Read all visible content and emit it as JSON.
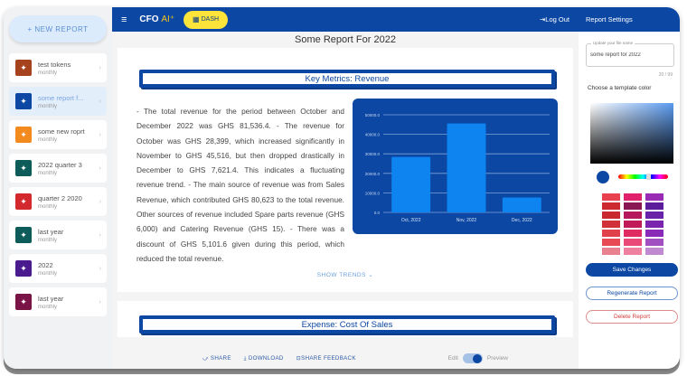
{
  "sidebar": {
    "new_report_label": "+ NEW REPORT",
    "items": [
      {
        "name": "test tokens",
        "sub": "monthly",
        "color": "#a6421e",
        "active": false
      },
      {
        "name": "some report f...",
        "sub": "monthly",
        "color": "#0b47a3",
        "active": true
      },
      {
        "name": "some new roprt",
        "sub": "monthly",
        "color": "#f28a1e",
        "active": false
      },
      {
        "name": "2022 quarter 3",
        "sub": "monthly",
        "color": "#0e5c5a",
        "active": false
      },
      {
        "name": "quarter 2 2020",
        "sub": "monthly",
        "color": "#d2282e",
        "active": false
      },
      {
        "name": "last year",
        "sub": "monthly",
        "color": "#0e5c5a",
        "active": false
      },
      {
        "name": "2022",
        "sub": "monthly",
        "color": "#4a1a8f",
        "active": false
      },
      {
        "name": "last year",
        "sub": "monthly",
        "color": "#7a1446",
        "active": false
      }
    ],
    "chevron": "›",
    "item_icon": "sparkle-icon"
  },
  "topbar": {
    "menu_icon": "≡",
    "logo_text": "CFO ",
    "logo_ai": "AI⁺",
    "dash_icon": "▦",
    "dash_label": "DASH",
    "logout_label": "⇥Log Out",
    "bg_color": "#0b47a3"
  },
  "main": {
    "report_title": "Some Report For 2022",
    "sections": [
      {
        "header": "Key Metrics: Revenue",
        "body": "- The total revenue for the period between October and December 2022 was GHS 81,536.4. - The revenue for October was GHS 28,399, which increased significantly in November to GHS 45,516, but then dropped drastically in December to GHS 7,621.4. This indicates a fluctuating revenue trend. - The main source of revenue was from Sales Revenue, which contributed GHS 80,623 to the total revenue. Other sources of revenue included Spare parts revenue (GHS 6,000) and Catering Revenue (GHS 15). - There was a discount of GHS 5,101.6 given during this period, which reduced the total revenue.",
        "show_trends": "SHOW TRENDS ⌄"
      },
      {
        "header": "Expense: Cost Of Sales"
      }
    ],
    "footer": {
      "share": "⤻ SHARE",
      "download": "⤓ DOWNLOAD",
      "feedback": "⊡SHARE FEEDBACK",
      "edit_label": "Edit",
      "preview_label": "Preview",
      "toggle_state": "preview"
    }
  },
  "chart_data": {
    "type": "bar",
    "title": "",
    "categories": [
      "Oct, 2022",
      "Nov, 2022",
      "Dec, 2022"
    ],
    "values": [
      28399,
      45516,
      7621.4
    ],
    "yticks": [
      "0.0",
      "10000.0",
      "20000.0",
      "30000.0",
      "40000.0",
      "50000.0"
    ],
    "ylim": [
      0,
      50000
    ],
    "xlabel": "",
    "ylabel": "",
    "grid": true,
    "bar_color": "#0d84f0",
    "bg_color": "#0b47a3"
  },
  "settings": {
    "title": "Report Settings",
    "file_name_label": "Update your file name",
    "file_name_value": "some report for 2022",
    "counter": "20 / 99",
    "color_label": "Choose a template color",
    "current_color": "#0b47a3",
    "palette": [
      "#e8404f",
      "#e0206a",
      "#9a2bb5",
      "#cc2a30",
      "#8a1852",
      "#5c1d9c",
      "#c8282e",
      "#b5185c",
      "#6a22a8",
      "#d03038",
      "#c01a58",
      "#7a24b0",
      "#e0404a",
      "#e02a62",
      "#8a2ab8",
      "#e84a55",
      "#ea4a78",
      "#a050c0",
      "#e88090",
      "#f080a0",
      "#c08ad0"
    ],
    "save_label": "Save Changes",
    "regenerate_label": "Regenerate Report",
    "delete_label": "Delete Report"
  }
}
